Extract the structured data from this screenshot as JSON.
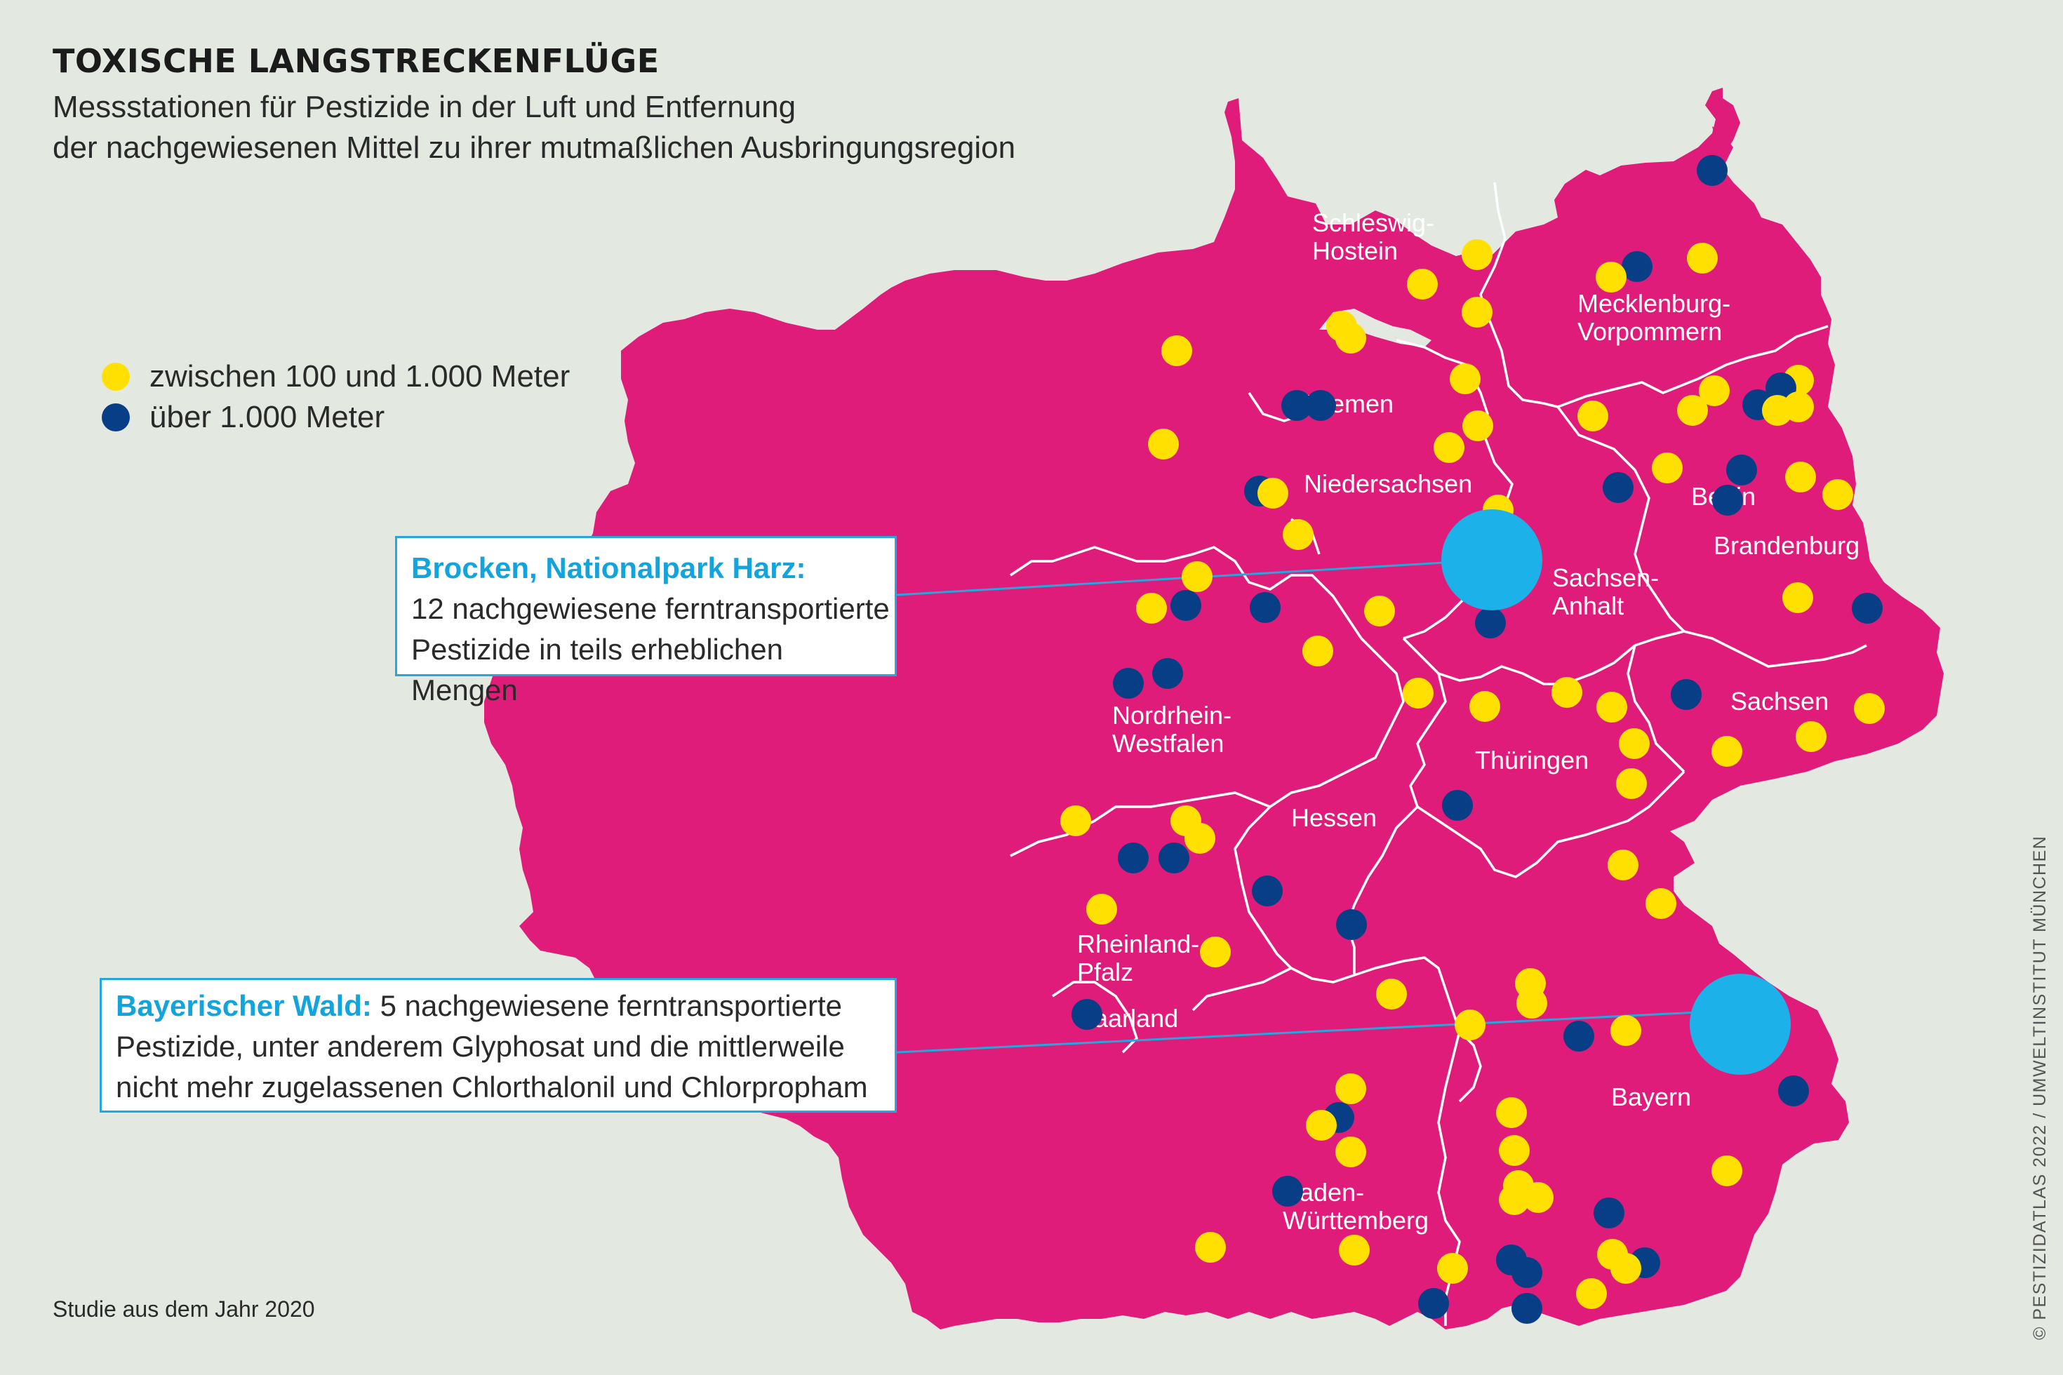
{
  "header": {
    "title": "TOXISCHE LANGSTRECKENFLÜGE",
    "subtitle_line1": "Messstationen für Pestizide in der Luft und Entfernung",
    "subtitle_line2": "der nachgewiesenen Mittel zu ihrer mutmaßlichen Ausbringungsregion"
  },
  "legend": {
    "items": [
      {
        "label": "zwischen 100 und 1.000 Meter",
        "color": "#ffe000"
      },
      {
        "label": "über 1.000 Meter",
        "color": "#073e86"
      }
    ]
  },
  "colors": {
    "land": "#e01c7a",
    "border": "#ffffff",
    "near_station": "#ffe000",
    "far_station": "#073e86",
    "highlight_station": "#1db1ea",
    "callout_accent": "#12a4dc"
  },
  "callouts": {
    "brocken": {
      "heading": "Brocken, Nationalpark Harz:",
      "line1": "12 nachgewiesene ferntransportierte",
      "line2": "Pestizide in teils erheblichen Mengen"
    },
    "bayerischer_wald": {
      "heading": "Bayerischer Wald:",
      "line1_rest": " 5 nachgewiesene ferntransportierte",
      "line2": "Pestizide, unter anderem Glyphosat und die mittlerweile",
      "line3": "nicht mehr zugelassenen  Chlorthalonil und  Chlorpropham"
    }
  },
  "map": {
    "regions": [
      {
        "id": "schleswig-holstein",
        "lines": [
          "Schleswig-",
          "Hostein"
        ]
      },
      {
        "id": "mecklenburg-vorpommern",
        "lines": [
          "Mecklenburg-",
          "Vorpommern"
        ]
      },
      {
        "id": "bremen",
        "lines": [
          "Bremen"
        ]
      },
      {
        "id": "niedersachsen",
        "lines": [
          "Niedersachsen"
        ]
      },
      {
        "id": "berlin",
        "lines": [
          "Berlin"
        ]
      },
      {
        "id": "brandenburg",
        "lines": [
          "Brandenburg"
        ]
      },
      {
        "id": "sachsen-anhalt",
        "lines": [
          "Sachsen-",
          "Anhalt"
        ]
      },
      {
        "id": "nordrhein-westfalen",
        "lines": [
          "Nordrhein-",
          "Westfalen"
        ]
      },
      {
        "id": "sachsen",
        "lines": [
          "Sachsen"
        ]
      },
      {
        "id": "thueringen",
        "lines": [
          "Thüringen"
        ]
      },
      {
        "id": "hessen",
        "lines": [
          "Hessen"
        ]
      },
      {
        "id": "rheinland-pfalz",
        "lines": [
          "Rheinland-",
          "Pfalz"
        ]
      },
      {
        "id": "saarland",
        "lines": [
          "Saarland"
        ]
      },
      {
        "id": "bayern",
        "lines": [
          "Bayern"
        ]
      },
      {
        "id": "baden-wuerttemberg",
        "lines": [
          "Baden-",
          "Württemberg"
        ]
      }
    ],
    "highlight_stations": [
      {
        "name": "Brocken, Nationalpark Harz"
      },
      {
        "name": "Bayerischer Wald"
      }
    ]
  },
  "footer": {
    "source": "Studie aus dem Jahr 2020",
    "credit": "© PESTIZIDATLAS 2022 / UMWELTINSTITUT MÜNCHEN"
  }
}
